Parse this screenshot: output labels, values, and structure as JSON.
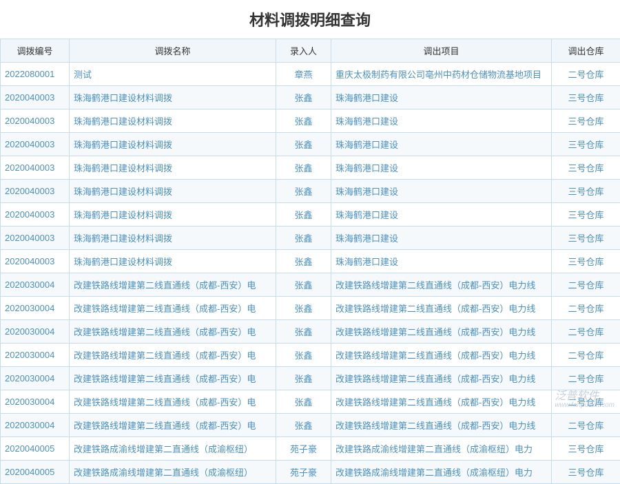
{
  "title": "材料调拨明细查询",
  "columns": [
    "调拨编号",
    "调拨名称",
    "录入人",
    "调出项目",
    "调出仓库"
  ],
  "rows": [
    [
      "2022080001",
      "测试",
      "章燕",
      "重庆太极制药有限公司亳州中药材仓储物流基地项目",
      "二号仓库"
    ],
    [
      "2020040003",
      "珠海鹤港口建设材料调拨",
      "张鑫",
      "珠海鹤港口建设",
      "三号仓库"
    ],
    [
      "2020040003",
      "珠海鹤港口建设材料调拨",
      "张鑫",
      "珠海鹤港口建设",
      "三号仓库"
    ],
    [
      "2020040003",
      "珠海鹤港口建设材料调拨",
      "张鑫",
      "珠海鹤港口建设",
      "三号仓库"
    ],
    [
      "2020040003",
      "珠海鹤港口建设材料调拨",
      "张鑫",
      "珠海鹤港口建设",
      "三号仓库"
    ],
    [
      "2020040003",
      "珠海鹤港口建设材料调拨",
      "张鑫",
      "珠海鹤港口建设",
      "三号仓库"
    ],
    [
      "2020040003",
      "珠海鹤港口建设材料调拨",
      "张鑫",
      "珠海鹤港口建设",
      "三号仓库"
    ],
    [
      "2020040003",
      "珠海鹤港口建设材料调拨",
      "张鑫",
      "珠海鹤港口建设",
      "三号仓库"
    ],
    [
      "2020040003",
      "珠海鹤港口建设材料调拨",
      "张鑫",
      "珠海鹤港口建设",
      "三号仓库"
    ],
    [
      "2020030004",
      "改建铁路线增建第二线直通线（成都-西安）电",
      "张鑫",
      "改建铁路线增建第二线直通线（成都-西安）电力线",
      "二号仓库"
    ],
    [
      "2020030004",
      "改建铁路线增建第二线直通线（成都-西安）电",
      "张鑫",
      "改建铁路线增建第二线直通线（成都-西安）电力线",
      "二号仓库"
    ],
    [
      "2020030004",
      "改建铁路线增建第二线直通线（成都-西安）电",
      "张鑫",
      "改建铁路线增建第二线直通线（成都-西安）电力线",
      "二号仓库"
    ],
    [
      "2020030004",
      "改建铁路线增建第二线直通线（成都-西安）电",
      "张鑫",
      "改建铁路线增建第二线直通线（成都-西安）电力线",
      "二号仓库"
    ],
    [
      "2020030004",
      "改建铁路线增建第二线直通线（成都-西安）电",
      "张鑫",
      "改建铁路线增建第二线直通线（成都-西安）电力线",
      "二号仓库"
    ],
    [
      "2020030004",
      "改建铁路线增建第二线直通线（成都-西安）电",
      "张鑫",
      "改建铁路线增建第二线直通线（成都-西安）电力线",
      "二号仓库"
    ],
    [
      "2020030004",
      "改建铁路线增建第二线直通线（成都-西安）电",
      "张鑫",
      "改建铁路线增建第二线直通线（成都-西安）电力线",
      "二号仓库"
    ],
    [
      "2020040005",
      "改建铁路成渝线增建第二直通线（成渝枢纽）",
      "苑子豪",
      "改建铁路成渝线增建第二直通线（成渝枢纽）电力",
      "三号仓库"
    ],
    [
      "2020040005",
      "改建铁路成渝线增建第二直通线（成渝枢纽）",
      "苑子豪",
      "改建铁路成渝线增建第二直通线（成渝枢纽）电力",
      "三号仓库"
    ]
  ],
  "colors": {
    "header_bg": "#f0f6fa",
    "border": "#c8dbe8",
    "link_text": "#4a90c0",
    "row_odd": "#ffffff",
    "row_even": "#f5f9fc",
    "title_color": "#333333"
  },
  "watermark": {
    "main": "泛普软件",
    "sub": "www.fanpusoft.com"
  }
}
